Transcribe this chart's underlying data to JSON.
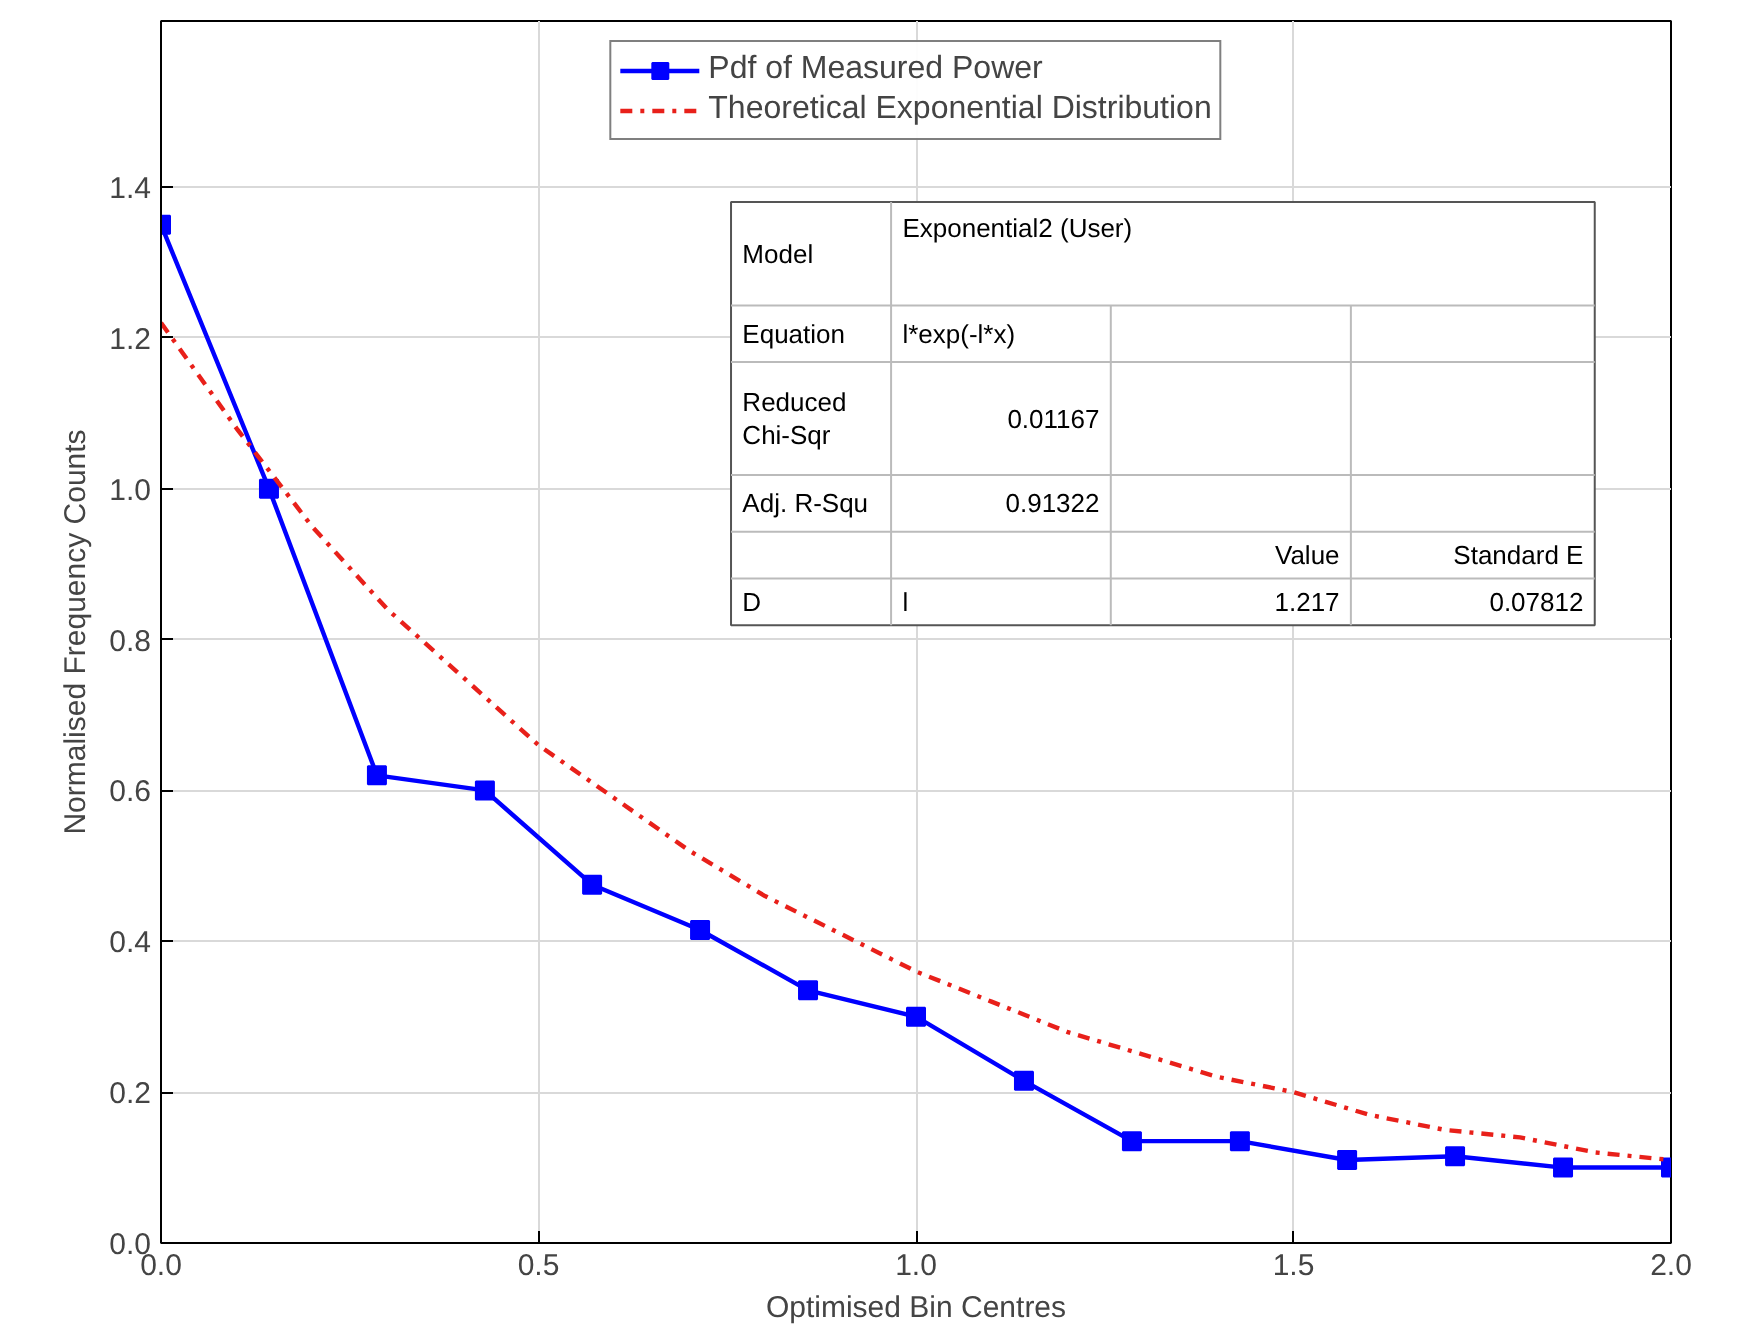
{
  "chart_data": {
    "type": "line",
    "xlabel": "Optimised Bin Centres",
    "ylabel": "Normalised Frequency Counts",
    "xlim": [
      0,
      2.0
    ],
    "ylim": [
      0,
      1.62
    ],
    "xticks": [
      {
        "value": 0,
        "label": "0.0"
      },
      {
        "value": 0.5,
        "label": "0.5"
      },
      {
        "value": 1.0,
        "label": "1.0"
      },
      {
        "value": 1.5,
        "label": "1.5"
      },
      {
        "value": 2.0,
        "label": "2.0"
      }
    ],
    "yticks": [
      {
        "value": 0,
        "label": "0.0"
      },
      {
        "value": 0.2,
        "label": "0.2"
      },
      {
        "value": 0.4,
        "label": "0.4"
      },
      {
        "value": 0.6,
        "label": "0.6"
      },
      {
        "value": 0.8,
        "label": "0.8"
      },
      {
        "value": 1.0,
        "label": "1.0"
      },
      {
        "value": 1.2,
        "label": "1.2"
      },
      {
        "value": 1.4,
        "label": "1.4"
      }
    ],
    "grid": true,
    "legend": "top",
    "series": [
      {
        "name": "Pdf of Measured Power",
        "color": "#0000ff",
        "marker": "square",
        "line_style": "solid",
        "x": [
          0,
          0.143,
          0.286,
          0.429,
          0.571,
          0.714,
          0.857,
          1.0,
          1.143,
          1.286,
          1.429,
          1.571,
          1.714,
          1.857,
          2.0
        ],
        "values": [
          1.35,
          1.0,
          0.62,
          0.6,
          0.475,
          0.415,
          0.335,
          0.3,
          0.215,
          0.135,
          0.135,
          0.11,
          0.115,
          0.1,
          0.1
        ]
      },
      {
        "name": "Theoretical Exponential Distribution",
        "color": "#e8201a",
        "marker": "none",
        "line_style": "dashdot",
        "x": [
          0,
          0.1,
          0.2,
          0.3,
          0.4,
          0.5,
          0.6,
          0.7,
          0.8,
          0.9,
          1.0,
          1.1,
          1.2,
          1.3,
          1.4,
          1.5,
          1.6,
          1.7,
          1.8,
          1.9,
          2.0
        ],
        "values": [
          1.22,
          1.08,
          0.95,
          0.84,
          0.75,
          0.66,
          0.59,
          0.52,
          0.46,
          0.41,
          0.36,
          0.32,
          0.28,
          0.25,
          0.22,
          0.2,
          0.17,
          0.15,
          0.14,
          0.12,
          0.11
        ]
      }
    ],
    "annotations": [
      "Model",
      "Exponential2 (User)",
      "Equation",
      "l*exp(-l*x)",
      "Reduced\nChi-Sqr",
      "0.01167",
      "Adj. R-Squ",
      "0.91322",
      "Value",
      "Standard E",
      "D",
      "l",
      "1.217",
      "0.07812"
    ]
  }
}
